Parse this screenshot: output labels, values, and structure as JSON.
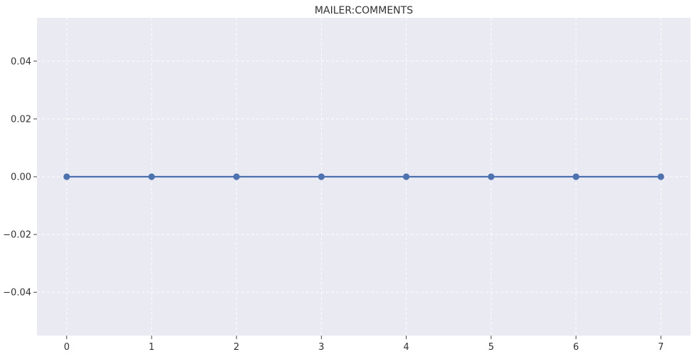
{
  "chart_data": {
    "type": "line",
    "title": "MAILER:COMMENTS",
    "xlabel": "",
    "ylabel": "",
    "x": [
      0,
      1,
      2,
      3,
      4,
      5,
      6,
      7
    ],
    "series": [
      {
        "values": [
          0,
          0,
          0,
          0,
          0,
          0,
          0,
          0
        ],
        "color": "#4c72b0"
      }
    ],
    "xlim": [
      -0.35,
      7.35
    ],
    "ylim": [
      -0.055,
      0.055
    ],
    "xticks": [
      0,
      1,
      2,
      3,
      4,
      5,
      6,
      7
    ],
    "xtick_labels": [
      "0",
      "1",
      "2",
      "3",
      "4",
      "5",
      "6",
      "7"
    ],
    "yticks": [
      -0.04,
      -0.02,
      0.0,
      0.02,
      0.04
    ],
    "ytick_labels": [
      "−0.04",
      "−0.02",
      "0.00",
      "0.02",
      "0.04"
    ],
    "grid": true,
    "marker": "circle",
    "background": "#eaeaf2"
  }
}
